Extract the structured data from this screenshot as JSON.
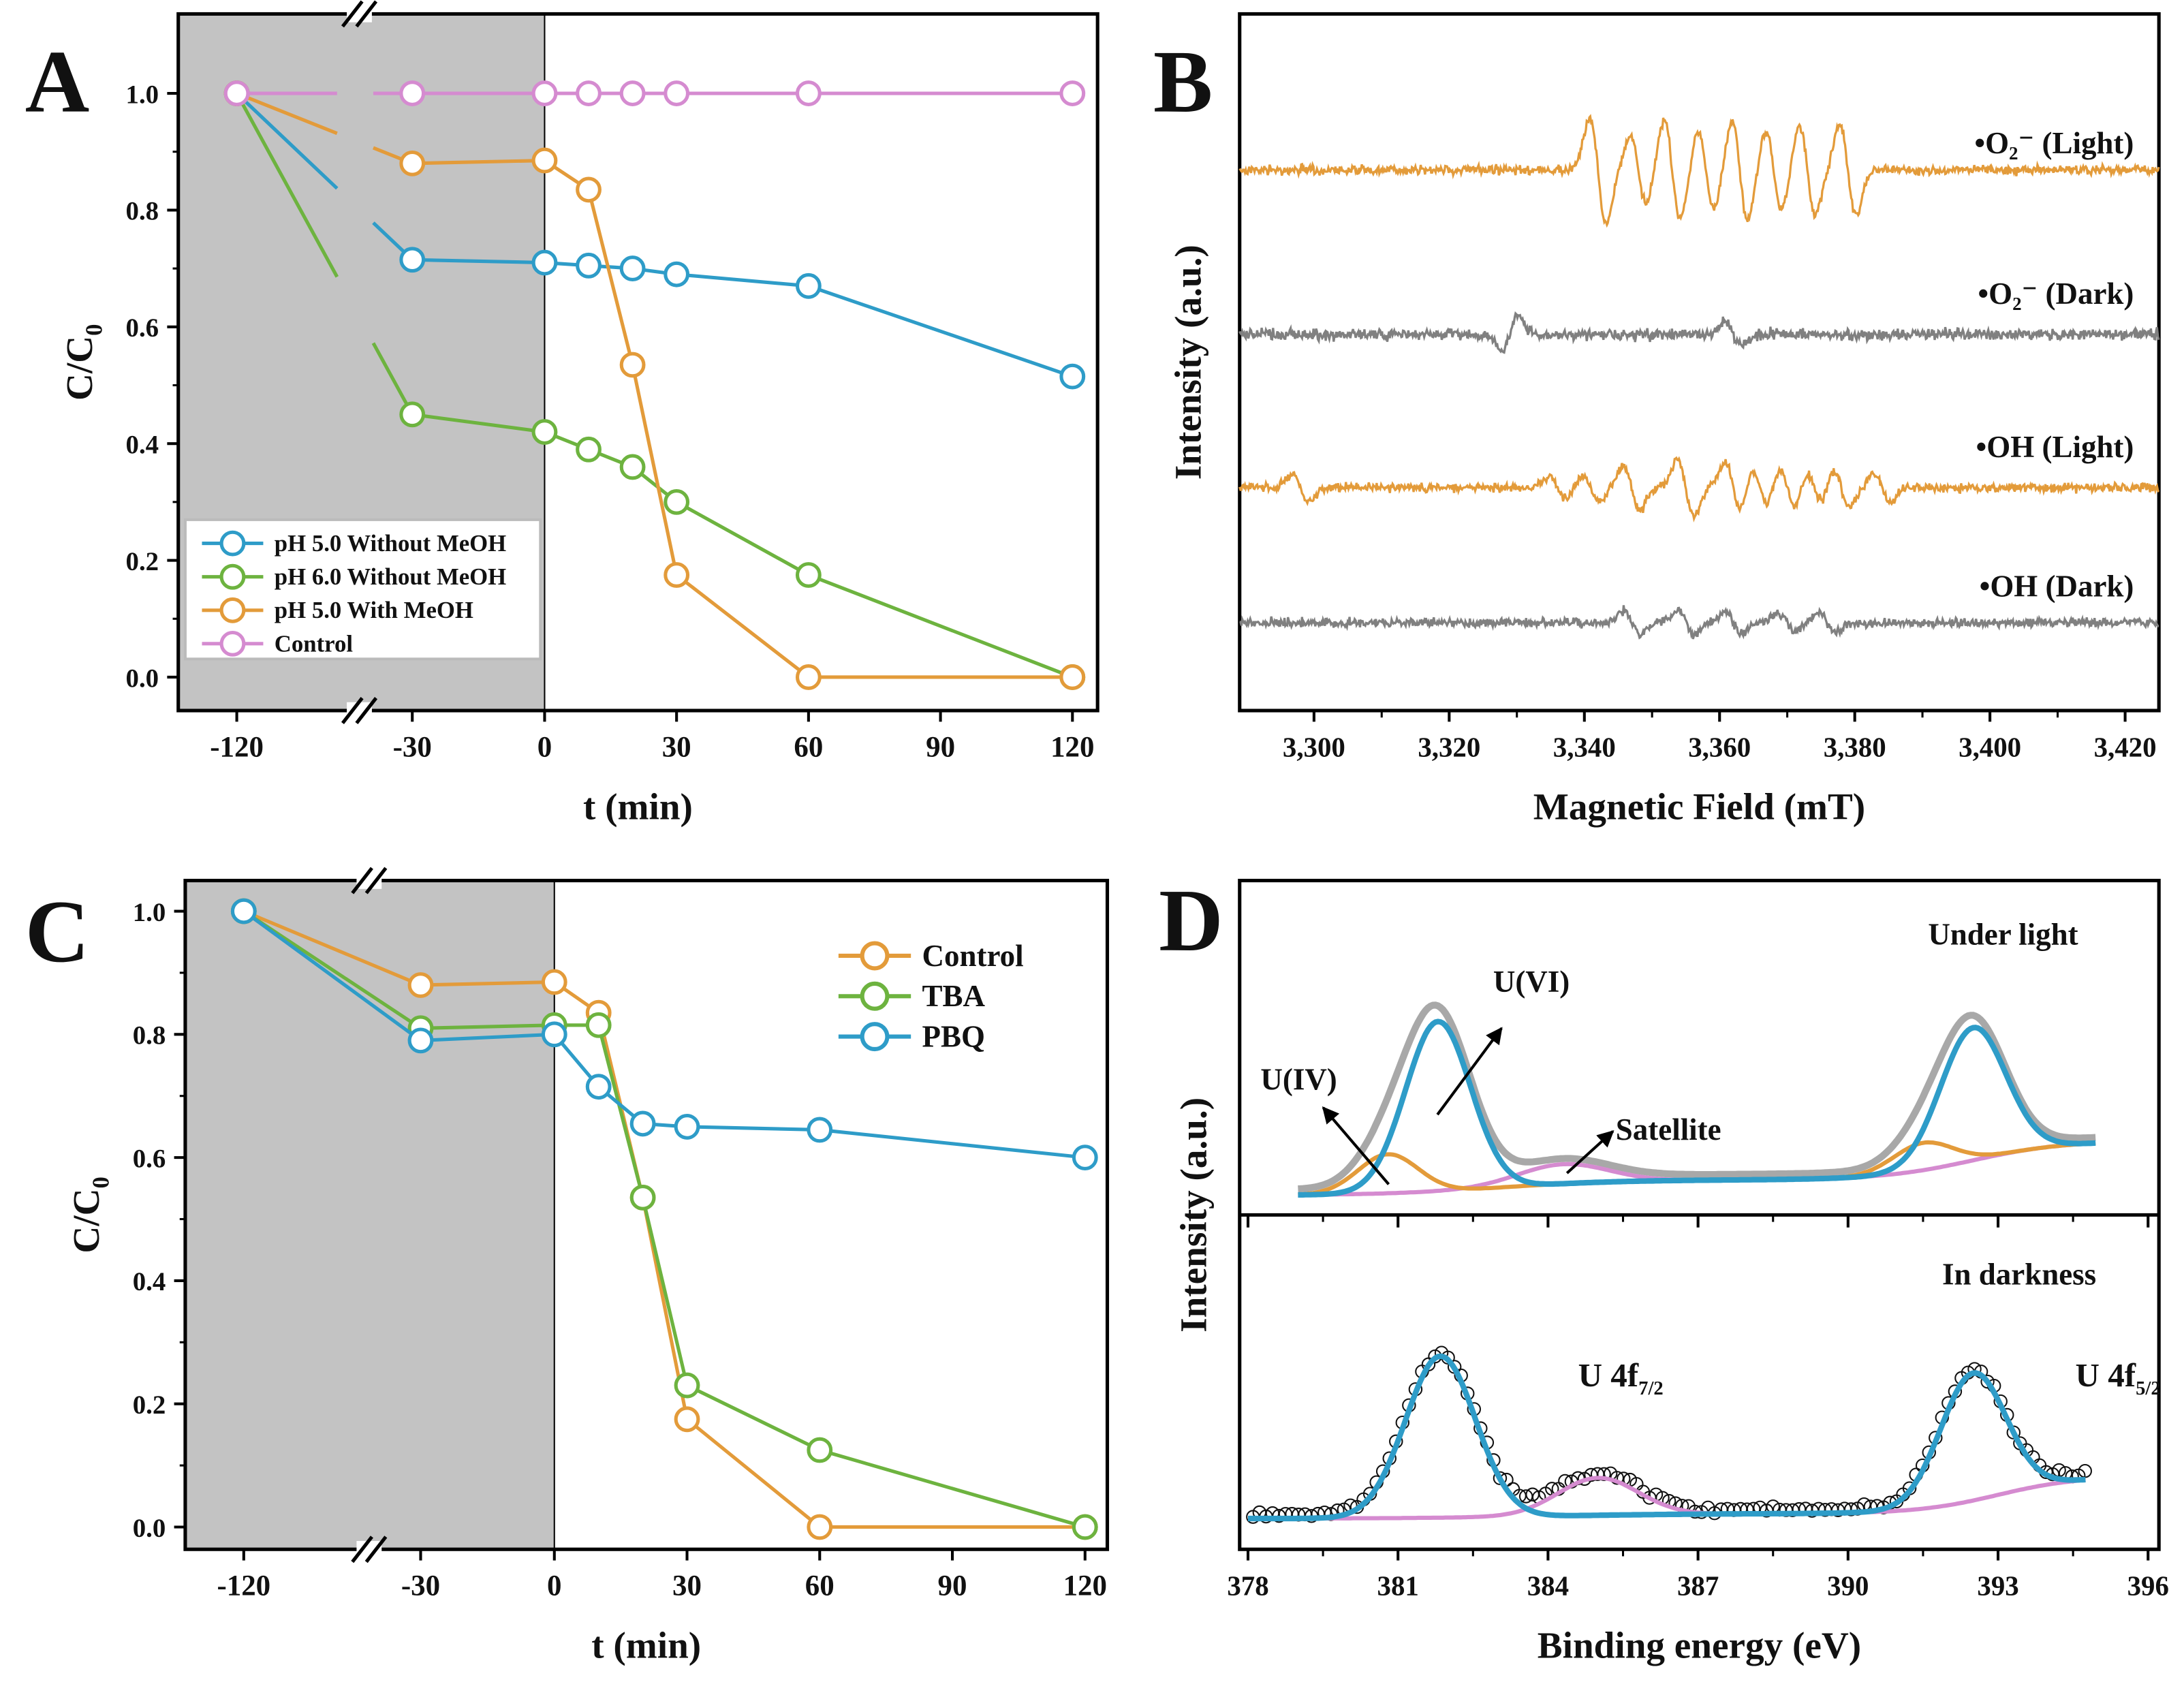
{
  "panels": {
    "A": "A",
    "B": "B",
    "C": "C",
    "D": "D"
  },
  "chart_data": [
    {
      "panel": "A",
      "type": "line",
      "xlabel": "t (min)",
      "ylabel_main": "C/C",
      "ylabel_sub": "0",
      "x": [
        -120,
        -30,
        0,
        10,
        20,
        30,
        60,
        120
      ],
      "xticks": [
        "-120",
        "-30",
        "0",
        "30",
        "60",
        "90",
        "120"
      ],
      "yticks": [
        "0.0",
        "0.2",
        "0.4",
        "0.6",
        "0.8",
        "1.0"
      ],
      "shaded_region": [
        -120,
        0
      ],
      "axis_break": [
        -120,
        -30
      ],
      "legend_position": "bottom-left",
      "series": [
        {
          "name": "pH 5.0 Without MeOH",
          "color": "#2E9CC8",
          "values": [
            1.0,
            0.715,
            0.71,
            0.705,
            0.7,
            0.69,
            0.67,
            0.515
          ]
        },
        {
          "name": "pH 6.0 Without MeOH",
          "color": "#6DB33F",
          "values": [
            1.0,
            0.45,
            0.42,
            0.39,
            0.36,
            0.3,
            0.175,
            0.0
          ]
        },
        {
          "name": "pH 5.0 With MeOH",
          "color": "#E39B3A",
          "values": [
            1.0,
            0.88,
            0.885,
            0.835,
            0.535,
            0.175,
            0.0,
            0.0
          ]
        },
        {
          "name": "Control",
          "color": "#D58BD0",
          "values": [
            1.0,
            1.0,
            1.0,
            1.0,
            1.0,
            1.0,
            1.0,
            1.0
          ]
        }
      ]
    },
    {
      "panel": "B",
      "type": "line",
      "xlabel": "Magnetic Field (mT)",
      "ylabel": "Intensity (a.u.)",
      "xlim": [
        3289,
        3425
      ],
      "xticks": [
        "3,300",
        "3,320",
        "3,340",
        "3,360",
        "3,380",
        "3,400",
        "3,420"
      ],
      "series": [
        {
          "name": "•O₂⁻ (Light)",
          "color": "#E39B3A",
          "noise": 4,
          "lines": [
            [
              3342,
              38
            ],
            [
              3348,
              24
            ],
            [
              3353,
              36
            ],
            [
              3358,
              28
            ],
            [
              3363,
              36
            ],
            [
              3368,
              28
            ],
            [
              3373,
              32
            ],
            [
              3379,
              32
            ]
          ]
        },
        {
          "name": "•O₂⁻ (Dark)",
          "color": "#808080",
          "noise": 5,
          "lines": [
            [
              3329,
              -12
            ],
            [
              3362,
              8
            ]
          ]
        },
        {
          "name": "•OH (Light)",
          "color": "#E39B3A",
          "noise": 4,
          "lines": [
            [
              3298,
              10
            ],
            [
              3336,
              8
            ],
            [
              3341,
              9
            ],
            [
              3347,
              16
            ],
            [
              3355,
              20
            ],
            [
              3362,
              18
            ],
            [
              3366,
              14
            ],
            [
              3370,
              16
            ],
            [
              3374,
              12
            ],
            [
              3378,
              14
            ],
            [
              3384,
              10
            ]
          ]
        },
        {
          "name": "•OH (Dark)",
          "color": "#808080",
          "noise": 4,
          "lines": [
            [
              3347,
              9
            ],
            [
              3355,
              9
            ],
            [
              3362,
              8
            ],
            [
              3370,
              7
            ],
            [
              3376,
              7
            ]
          ]
        }
      ]
    },
    {
      "panel": "C",
      "type": "line",
      "xlabel": "t (min)",
      "ylabel_main": "C/C",
      "ylabel_sub": "0",
      "x": [
        -120,
        -30,
        0,
        10,
        20,
        30,
        60,
        120
      ],
      "xticks": [
        "-120",
        "-30",
        "0",
        "30",
        "60",
        "90",
        "120"
      ],
      "yticks": [
        "0.0",
        "0.2",
        "0.4",
        "0.6",
        "0.8",
        "1.0"
      ],
      "shaded_region": [
        -120,
        0
      ],
      "axis_break": [
        -120,
        -30
      ],
      "legend_position": "top-right",
      "series": [
        {
          "name": "Control",
          "color": "#E39B3A",
          "values": [
            1.0,
            0.88,
            0.885,
            0.835,
            0.535,
            0.175,
            0.0,
            0.0
          ]
        },
        {
          "name": "TBA",
          "color": "#6DB33F",
          "values": [
            1.0,
            0.81,
            0.815,
            0.815,
            0.535,
            0.23,
            0.125,
            0.0
          ]
        },
        {
          "name": "PBQ",
          "color": "#2E9CC8",
          "values": [
            1.0,
            0.79,
            0.8,
            0.715,
            0.655,
            0.65,
            0.645,
            0.6
          ]
        }
      ]
    },
    {
      "panel": "D",
      "type": "line",
      "xlabel": "Binding energy (eV)",
      "ylabel": "Intensity (a.u.)",
      "xlim": [
        378,
        396
      ],
      "xticks": [
        "378",
        "381",
        "384",
        "387",
        "390",
        "393",
        "396"
      ],
      "subpanels": [
        {
          "title": "Under light",
          "baseline": [
            [
              0.08,
              383,
              1.2
            ],
            [
              0.2,
              392.5,
              0.9
            ]
          ],
          "components": [
            {
              "name": "U(VI)",
              "color": "#2E9CC8",
              "peaks": [
                [
                  381.8,
                  0.87,
                  0.65
                ],
                [
                  392.5,
                  0.68,
                  0.65
                ]
              ]
            },
            {
              "name": "U(IV)",
              "color": "#E39B3A",
              "peaks": [
                [
                  380.8,
                  0.2,
                  0.6
                ],
                [
                  391.5,
                  0.14,
                  0.6
                ]
              ]
            },
            {
              "name": "Satellite",
              "color": "#D58BD0",
              "peaks": [
                [
                  384.3,
                  0.1,
                  0.9
                ]
              ]
            }
          ],
          "envelope_color": "#A8A8A8"
        },
        {
          "title": "In darkness",
          "baseline": [
            [
              0.03,
              384,
              1.5
            ],
            [
              0.22,
              393,
              0.8
            ]
          ],
          "components": [
            {
              "name": "U 4f",
              "color": "#2E9CC8",
              "peaks": [
                [
                  381.85,
                  0.95,
                  0.7
                ],
                [
                  392.5,
                  0.75,
                  0.65
                ]
              ]
            },
            {
              "name": "Satellite",
              "color": "#D58BD0",
              "peaks": [
                [
                  385.0,
                  0.22,
                  0.8
                ]
              ]
            }
          ],
          "data_marker": "open-circle"
        }
      ],
      "annotations": {
        "u_iv": "U(IV)",
        "u_vi": "U(VI)",
        "satellite": "Satellite"
      },
      "peak_labels": {
        "f72_main": "U 4f",
        "f72_sub": "7/2",
        "f52_main": "U 4f",
        "f52_sub": "5/2"
      }
    }
  ]
}
